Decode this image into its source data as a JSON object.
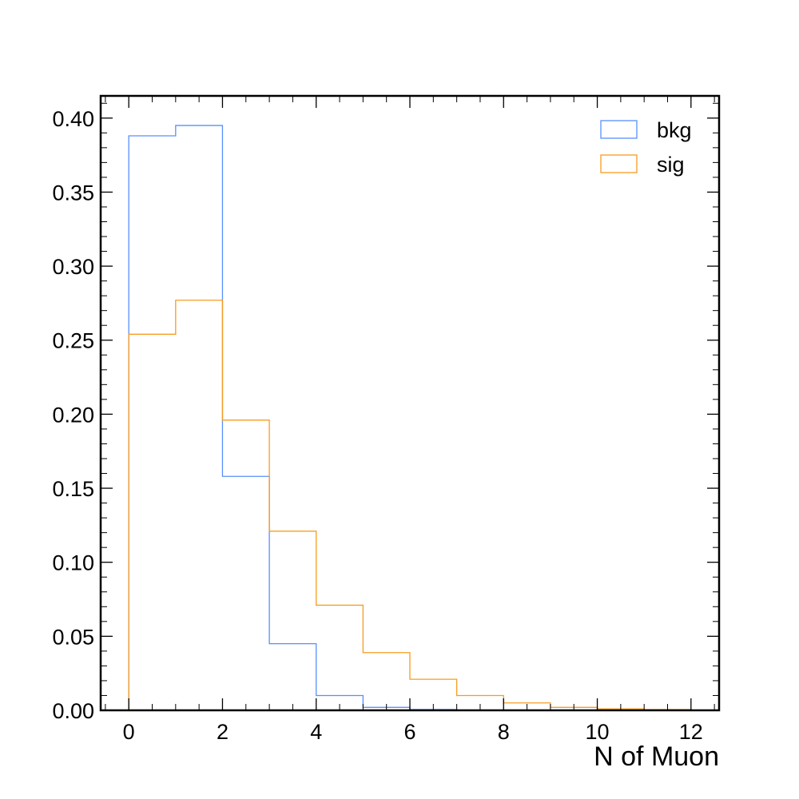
{
  "chart_data": {
    "type": "histogram",
    "title": "",
    "xlabel": "N of Muon",
    "ylabel": "",
    "xlim": [
      -0.6,
      12.6
    ],
    "ylim": [
      0.0,
      0.415
    ],
    "x_ticks": [
      "0",
      "2",
      "4",
      "6",
      "8",
      "10",
      "12"
    ],
    "y_ticks": [
      "0.00",
      "0.05",
      "0.10",
      "0.15",
      "0.20",
      "0.25",
      "0.30",
      "0.35",
      "0.40"
    ],
    "bin_edges": [
      0,
      1,
      2,
      3,
      4,
      5,
      6,
      7,
      8,
      9,
      10,
      11,
      12
    ],
    "legend_position": "top-right",
    "series": [
      {
        "name": "bkg",
        "color": "#5790fc",
        "values": [
          0.388,
          0.395,
          0.158,
          0.045,
          0.01,
          0.002,
          0.0005,
          0.0001,
          0.0,
          0.0,
          0.0,
          0.0
        ]
      },
      {
        "name": "sig",
        "color": "#f89c20",
        "values": [
          0.254,
          0.277,
          0.196,
          0.121,
          0.071,
          0.039,
          0.021,
          0.01,
          0.005,
          0.002,
          0.001,
          0.0005
        ]
      }
    ]
  }
}
